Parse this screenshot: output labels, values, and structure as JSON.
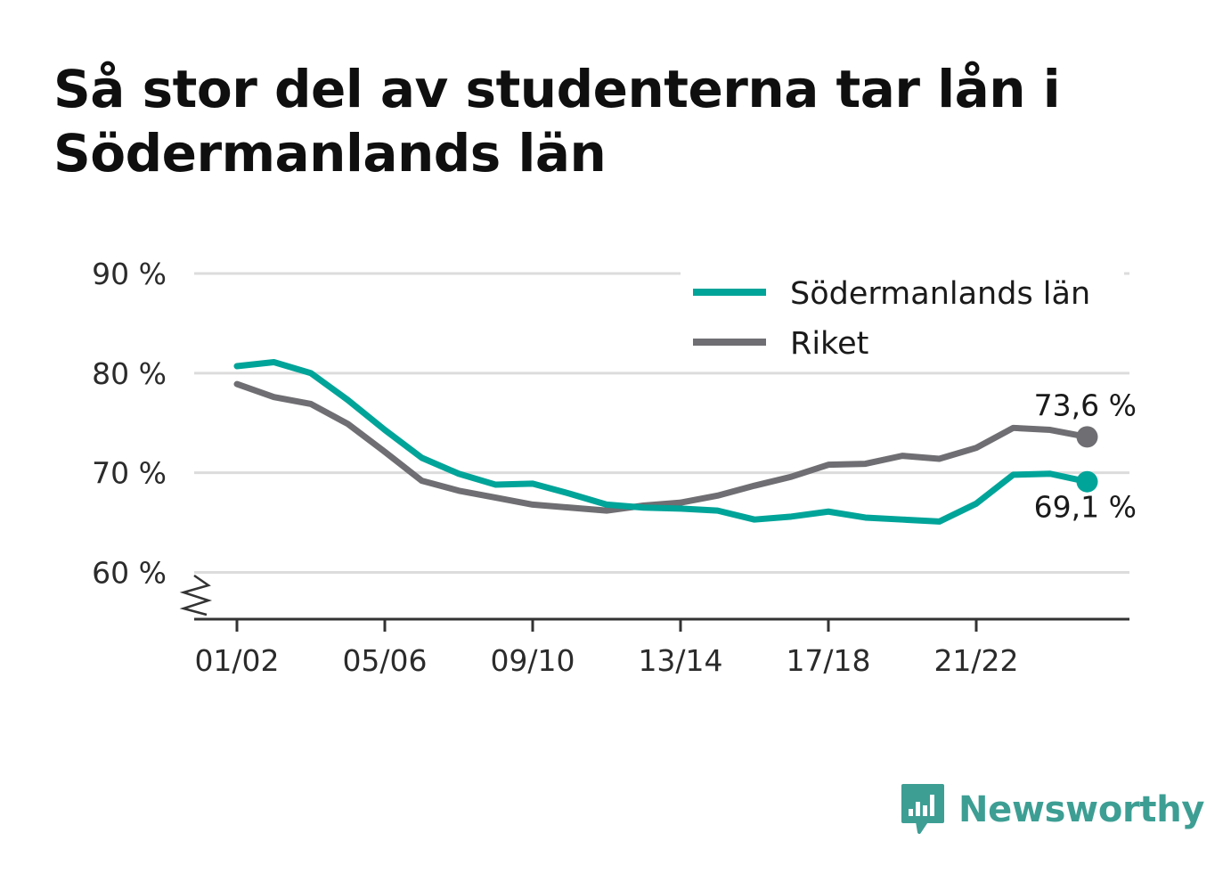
{
  "title": "Så stor del av studenterna tar lån i Södermanlands län",
  "brand": {
    "name": "Newsworthy"
  },
  "colors": {
    "sodermanland": "#00a499",
    "riket": "#6f6e72",
    "grid": "#dcdcdc",
    "axis": "#333333",
    "brand": "#3d9e94"
  },
  "chart_data": {
    "type": "line",
    "title": "Så stor del av studenterna tar lån i Södermanlands län",
    "xlabel": "",
    "ylabel": "",
    "x": [
      "01/02",
      "02/03",
      "03/04",
      "04/05",
      "05/06",
      "06/07",
      "07/08",
      "08/09",
      "09/10",
      "10/11",
      "11/12",
      "12/13",
      "13/14",
      "14/15",
      "15/16",
      "16/17",
      "17/18",
      "18/19",
      "19/20",
      "20/21",
      "21/22",
      "22/23",
      "23/24",
      "24/25"
    ],
    "x_tick_labels": [
      "01/02",
      "05/06",
      "09/10",
      "13/14",
      "17/18",
      "21/22"
    ],
    "y_tick_labels": [
      "90 %",
      "80 %",
      "70 %",
      "60 %"
    ],
    "y_ticks": [
      90,
      80,
      70,
      60
    ],
    "ylim": [
      55.3,
      90
    ],
    "y_axis_break": true,
    "grid": true,
    "legend_position": "top-right",
    "series": [
      {
        "name": "Södermanlands län",
        "color": "#00a499",
        "values": [
          80.7,
          81.1,
          80.0,
          77.3,
          74.3,
          71.5,
          69.9,
          68.8,
          68.9,
          67.9,
          66.8,
          66.5,
          66.4,
          66.2,
          65.3,
          65.6,
          66.1,
          65.5,
          65.3,
          65.1,
          66.9,
          69.8,
          69.9,
          69.1
        ],
        "end_label": "69,1 %"
      },
      {
        "name": "Riket",
        "color": "#6f6e72",
        "values": [
          78.9,
          77.6,
          76.9,
          74.9,
          72.1,
          69.2,
          68.2,
          67.5,
          66.8,
          66.5,
          66.2,
          66.7,
          67.0,
          67.7,
          68.7,
          69.6,
          70.8,
          70.9,
          71.7,
          71.4,
          72.5,
          74.5,
          74.3,
          73.6
        ],
        "end_label": "73,6 %"
      }
    ]
  }
}
